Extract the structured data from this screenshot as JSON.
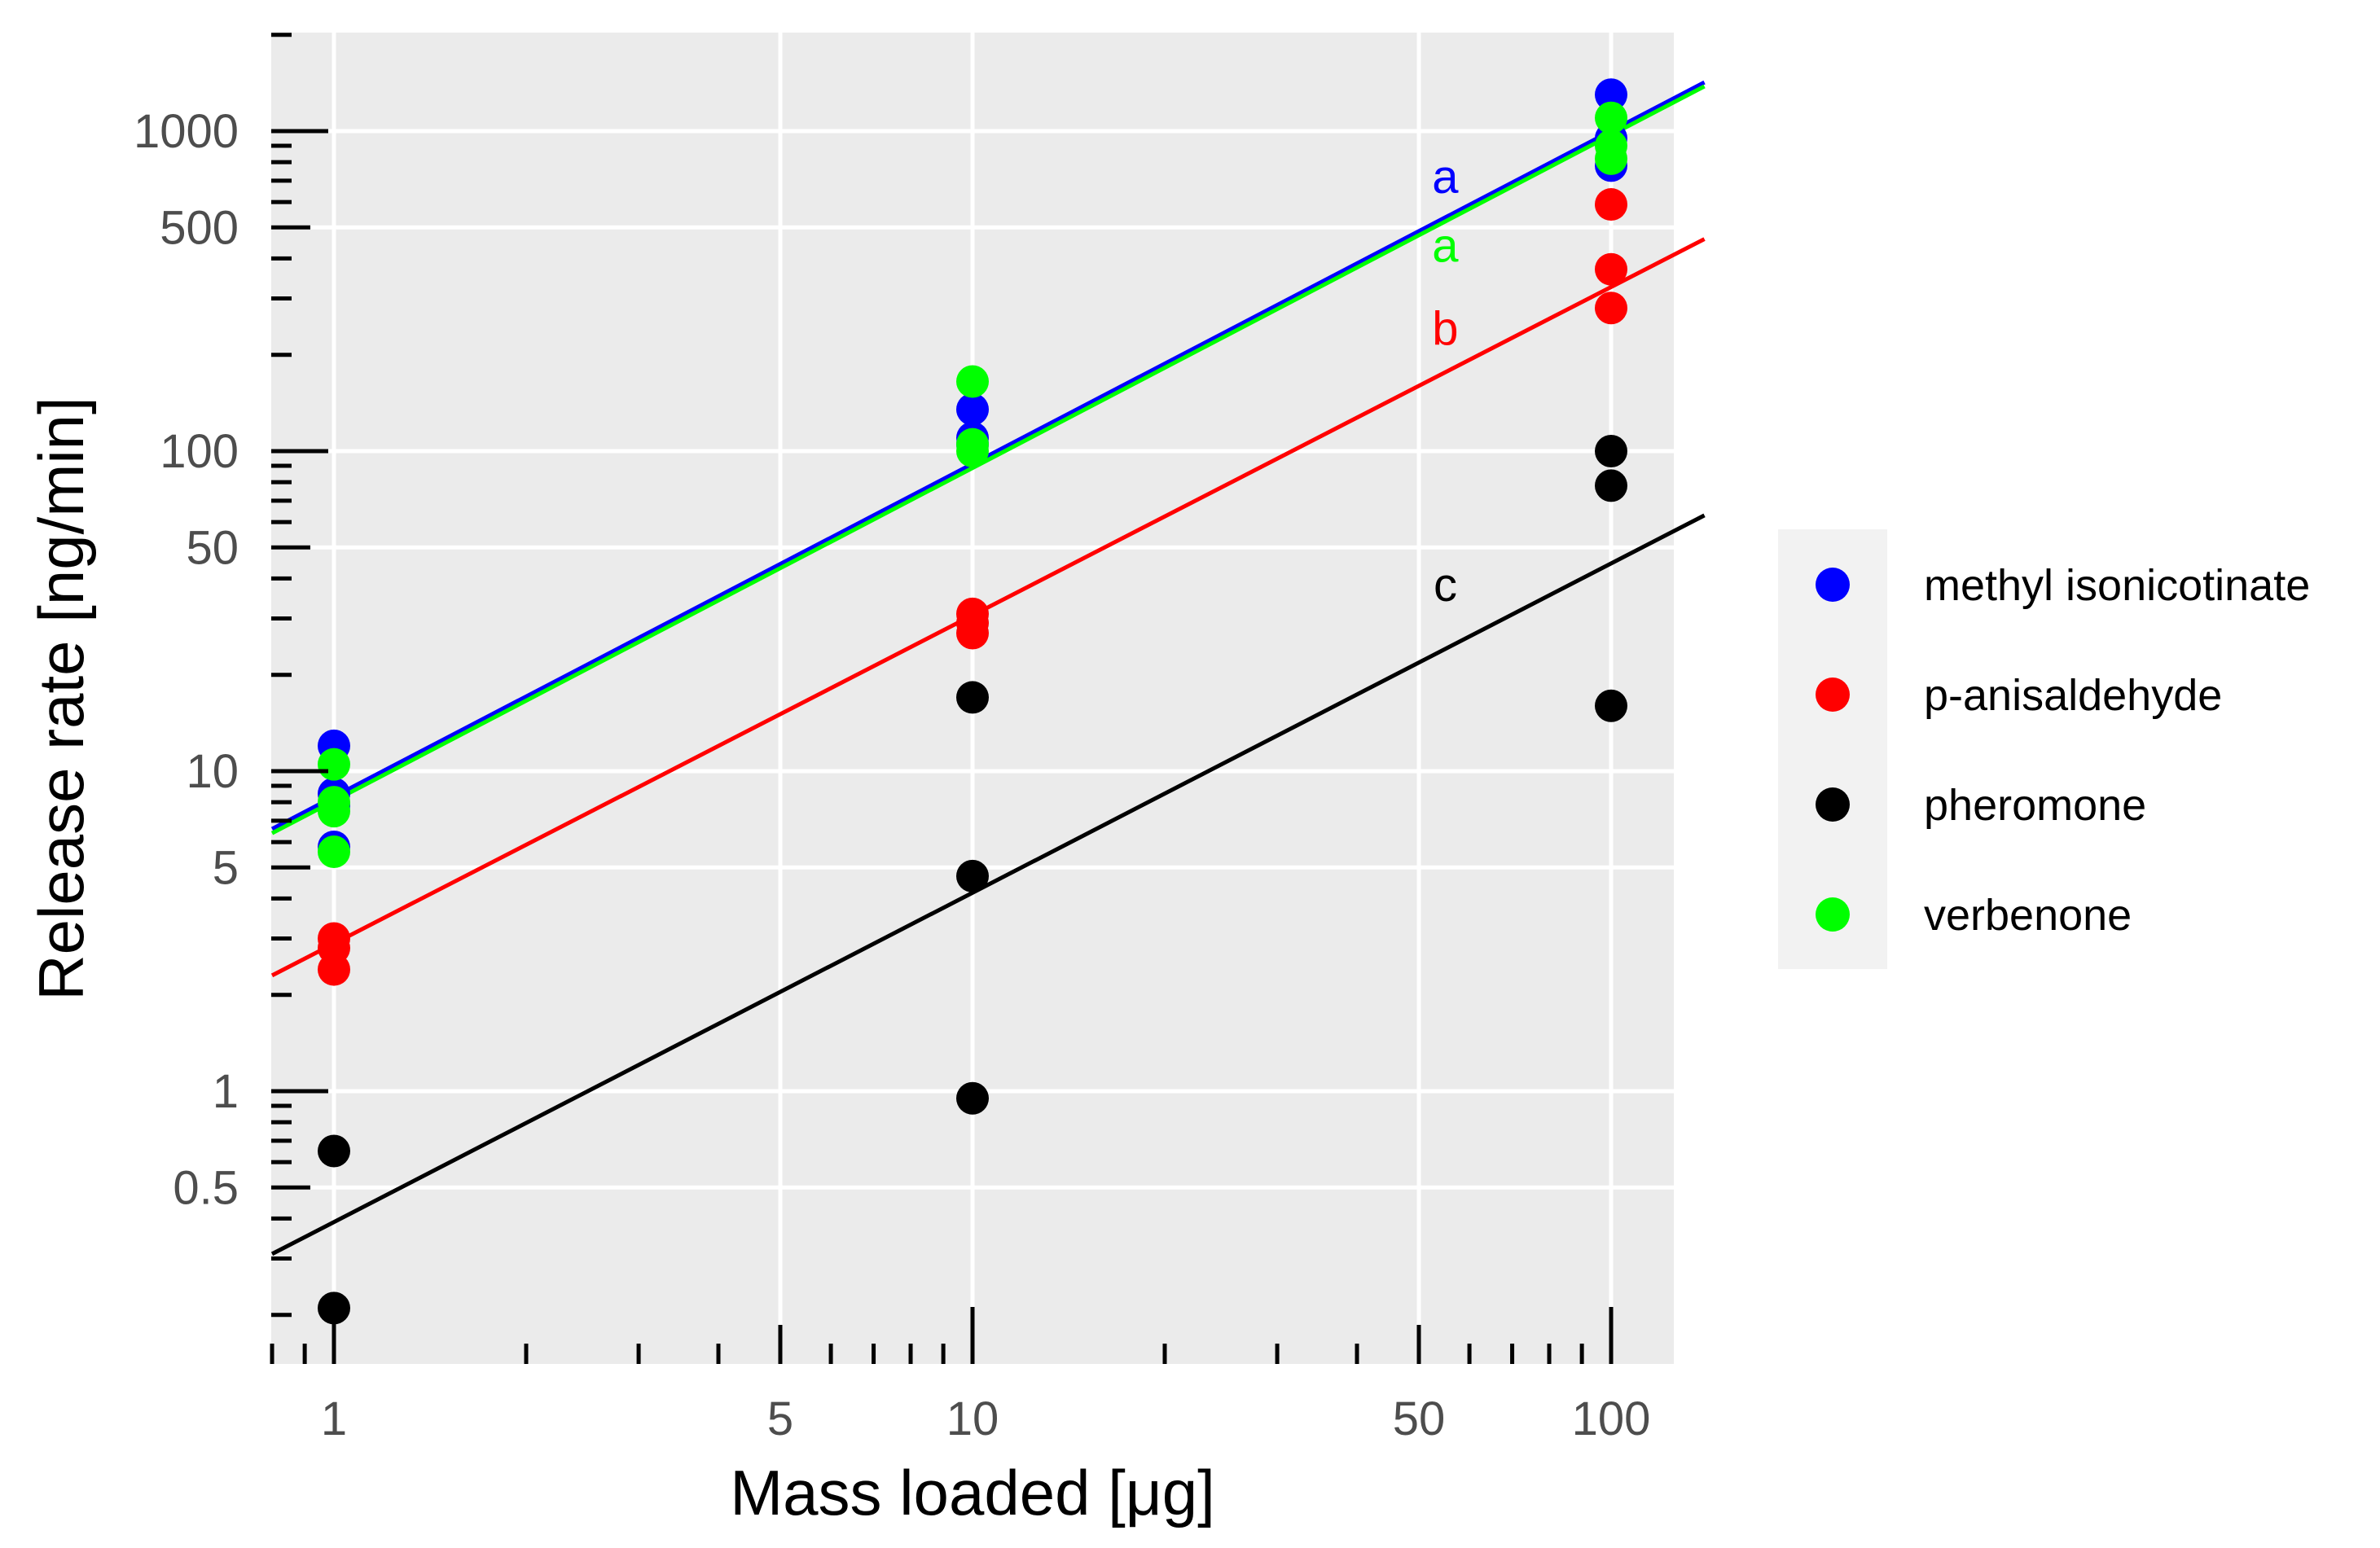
{
  "chart_data": {
    "type": "scatter",
    "xlabel": "Mass loaded [μg]",
    "ylabel": "Release rate [ng/min]",
    "x_scale": "log",
    "y_scale": "log",
    "xlim": [
      0.8,
      140
    ],
    "ylim": [
      0.15,
      2000
    ],
    "x_ticks": [
      1,
      5,
      10,
      50,
      100
    ],
    "x_tick_labels": [
      "1",
      "5",
      "10",
      "50",
      "100"
    ],
    "y_ticks": [
      0.5,
      1,
      5,
      10,
      50,
      100,
      500,
      1000
    ],
    "y_tick_labels": [
      "0.5",
      "1",
      "5",
      "10",
      "50",
      "100",
      "500",
      "1000"
    ],
    "grid": true,
    "legend_position": "right",
    "series": [
      {
        "name": "methyl isonicotinate",
        "color": "#0000ff",
        "points": [
          [
            1,
            12
          ],
          [
            1,
            8.5
          ],
          [
            1,
            7.8
          ],
          [
            1,
            5.8
          ],
          [
            10,
            135
          ],
          [
            10,
            110
          ],
          [
            10,
            105
          ],
          [
            100,
            1300
          ],
          [
            100,
            950
          ],
          [
            100,
            780
          ]
        ],
        "fit": [
          [
            0.8,
            6.6
          ],
          [
            140,
            1420
          ]
        ],
        "annotation": {
          "text": "a",
          "x": 55,
          "y": 640
        }
      },
      {
        "name": "p-anisaldehyde",
        "color": "#ff0000",
        "points": [
          [
            1,
            3.0
          ],
          [
            1,
            2.8
          ],
          [
            1,
            2.4
          ],
          [
            10,
            31
          ],
          [
            10,
            29
          ],
          [
            10,
            27
          ],
          [
            100,
            590
          ],
          [
            100,
            370
          ],
          [
            100,
            280
          ]
        ],
        "fit": [
          [
            0.8,
            2.3
          ],
          [
            140,
            460
          ]
        ],
        "annotation": {
          "text": "b",
          "x": 55,
          "y": 215
        }
      },
      {
        "name": "pheromone",
        "color": "#000000",
        "points": [
          [
            1,
            0.65
          ],
          [
            1,
            0.21
          ],
          [
            10,
            17
          ],
          [
            10,
            4.7
          ],
          [
            10,
            0.95
          ],
          [
            100,
            100
          ],
          [
            100,
            78
          ],
          [
            100,
            16
          ]
        ],
        "fit": [
          [
            0.8,
            0.31
          ],
          [
            140,
            63
          ]
        ],
        "annotation": {
          "text": "c",
          "x": 55,
          "y": 34
        }
      },
      {
        "name": "verbenone",
        "color": "#00ff00",
        "points": [
          [
            1,
            10.5
          ],
          [
            1,
            8
          ],
          [
            1,
            7.5
          ],
          [
            1,
            5.6
          ],
          [
            10,
            165
          ],
          [
            10,
            105
          ],
          [
            10,
            100
          ],
          [
            100,
            1100
          ],
          [
            100,
            900
          ],
          [
            100,
            820
          ]
        ],
        "fit": [
          [
            0.8,
            6.4
          ],
          [
            140,
            1380
          ]
        ],
        "annotation": {
          "text": "a",
          "x": 55,
          "y": 390
        }
      }
    ]
  }
}
